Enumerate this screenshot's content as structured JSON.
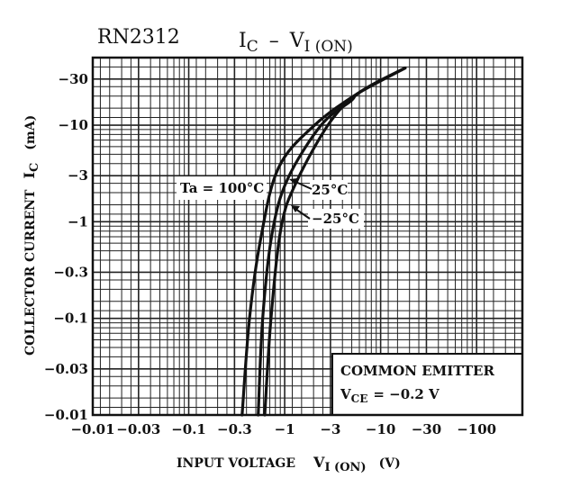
{
  "chart_data": {
    "type": "line",
    "part_number": "RN2312",
    "title": {
      "main": "I",
      "sub1": "C",
      "dash": "–",
      "v": "V",
      "sub2": "I (ON)"
    },
    "xlabel": {
      "main": "INPUT VOLTAGE",
      "v": "V",
      "sub": "I (ON)",
      "unit": "(V)"
    },
    "ylabel": {
      "main": "COLLECTOR CURRENT",
      "i": "I",
      "sub": "C",
      "unit": "(mA)"
    },
    "x_scale": "log",
    "y_scale": "log",
    "xlim": [
      -0.01,
      -300
    ],
    "ylim": [
      -0.01,
      -50
    ],
    "grid": true,
    "x_ticks": [
      {
        "value": -0.01,
        "label": "−0.01"
      },
      {
        "value": -0.03,
        "label": "−0.03"
      },
      {
        "value": -0.1,
        "label": "−0.1"
      },
      {
        "value": -0.3,
        "label": "−0.3"
      },
      {
        "value": -1,
        "label": "−1"
      },
      {
        "value": -3,
        "label": "−3"
      },
      {
        "value": -10,
        "label": "−10"
      },
      {
        "value": -30,
        "label": "−30"
      },
      {
        "value": -100,
        "label": "−100"
      }
    ],
    "y_ticks": [
      {
        "value": -0.01,
        "label": "−0.01"
      },
      {
        "value": -0.03,
        "label": "−0.03"
      },
      {
        "value": -0.1,
        "label": "−0.1"
      },
      {
        "value": -0.3,
        "label": "−0.3"
      },
      {
        "value": -1,
        "label": "−1"
      },
      {
        "value": -3,
        "label": "−3"
      },
      {
        "value": -10,
        "label": "−10"
      },
      {
        "value": -30,
        "label": "−30"
      }
    ],
    "series": [
      {
        "name": "Ta = 100°C",
        "x": [
          -0.36,
          -0.43,
          -0.56,
          -0.86,
          -2.05,
          -6.1,
          -18
        ],
        "y": [
          -0.01,
          -0.1,
          -0.65,
          -3.6,
          -10,
          -22,
          -39
        ]
      },
      {
        "name": "25°C",
        "x": [
          -0.53,
          -0.59,
          -0.74,
          -1.07,
          -2.4,
          -4.9,
          -6.1,
          -18
        ],
        "y": [
          -0.01,
          -0.1,
          -0.76,
          -2.75,
          -10,
          -17.8,
          -22,
          -39
        ]
      },
      {
        "name": "−25°C",
        "x": [
          -0.62,
          -0.72,
          -0.92,
          -1.33,
          -2.96,
          -6.1,
          -18
        ],
        "y": [
          -0.01,
          -0.1,
          -0.88,
          -2.6,
          -10.7,
          -22,
          -39
        ]
      }
    ],
    "annotations": {
      "condition_line1": "COMMON EMITTER",
      "condition_v": "V",
      "condition_sub": "CE",
      "condition_value": "= −0.2 V"
    }
  }
}
